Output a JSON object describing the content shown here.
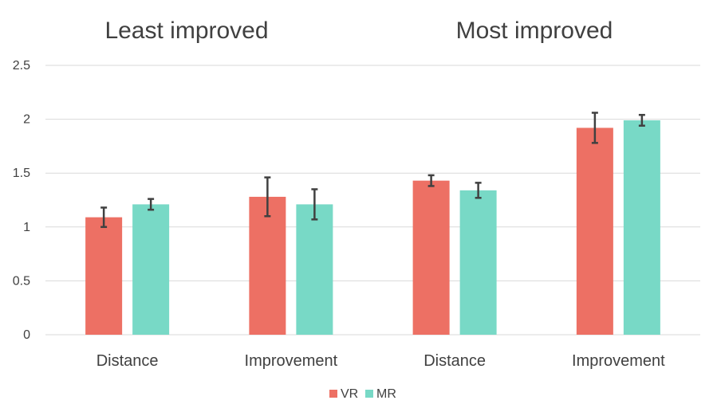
{
  "chart_data": {
    "type": "bar",
    "groups": [
      {
        "title": "Least improved",
        "categories": [
          "Distance",
          "Improvement"
        ]
      },
      {
        "title": "Most improved",
        "categories": [
          "Distance",
          "Improvement"
        ]
      }
    ],
    "categories": [
      "Distance",
      "Improvement",
      "Distance",
      "Improvement"
    ],
    "series": [
      {
        "name": "VR",
        "color": "#ED7064",
        "values": [
          1.09,
          1.28,
          1.43,
          1.92
        ],
        "error": [
          0.09,
          0.18,
          0.05,
          0.14
        ]
      },
      {
        "name": "MR",
        "color": "#78D9C6",
        "values": [
          1.21,
          1.21,
          1.34,
          1.99
        ],
        "error": [
          0.05,
          0.14,
          0.07,
          0.05
        ]
      }
    ],
    "ylim": [
      0,
      2.5
    ],
    "yticks": [
      "0",
      "0.5",
      "1",
      "1.5",
      "2",
      "2.5"
    ],
    "grid": true,
    "legend_position": "bottom",
    "error_bar_color": "#404040",
    "grid_color": "#d9d9d9"
  }
}
